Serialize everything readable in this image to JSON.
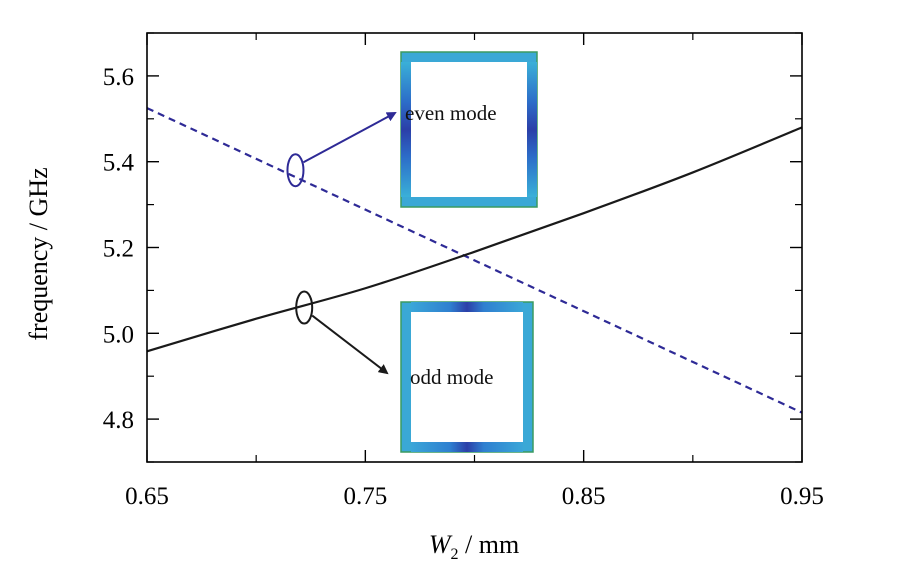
{
  "chart_data": {
    "type": "line",
    "xlabel_main": "W",
    "xlabel_sub": "2",
    "xlabel_unit": " / mm",
    "ylabel": "frequency / GHz",
    "xlim": [
      0.65,
      0.95
    ],
    "ylim": [
      4.7,
      5.7
    ],
    "x_ticks": [
      "0.65",
      "0.75",
      "0.85",
      "0.95"
    ],
    "y_ticks": [
      "4.8",
      "5.0",
      "5.2",
      "5.4",
      "5.6"
    ],
    "grid": false,
    "series": [
      {
        "style": "dashed",
        "color": "#2e2a96",
        "x": [
          0.65,
          0.95
        ],
        "y": [
          5.525,
          4.815
        ]
      },
      {
        "style": "solid",
        "color": "#1a1a1a",
        "x": [
          0.65,
          0.7,
          0.75,
          0.8,
          0.85,
          0.9,
          0.95
        ],
        "y": [
          4.958,
          5.034,
          5.105,
          5.19,
          5.28,
          5.375,
          5.48
        ]
      }
    ],
    "annotations": [
      {
        "text": "even mode",
        "color": "#2e2a96",
        "at": [
          0.718,
          5.38
        ]
      },
      {
        "text": "odd mode",
        "color": "#1a1a1a",
        "at": [
          0.722,
          5.06
        ]
      }
    ]
  }
}
